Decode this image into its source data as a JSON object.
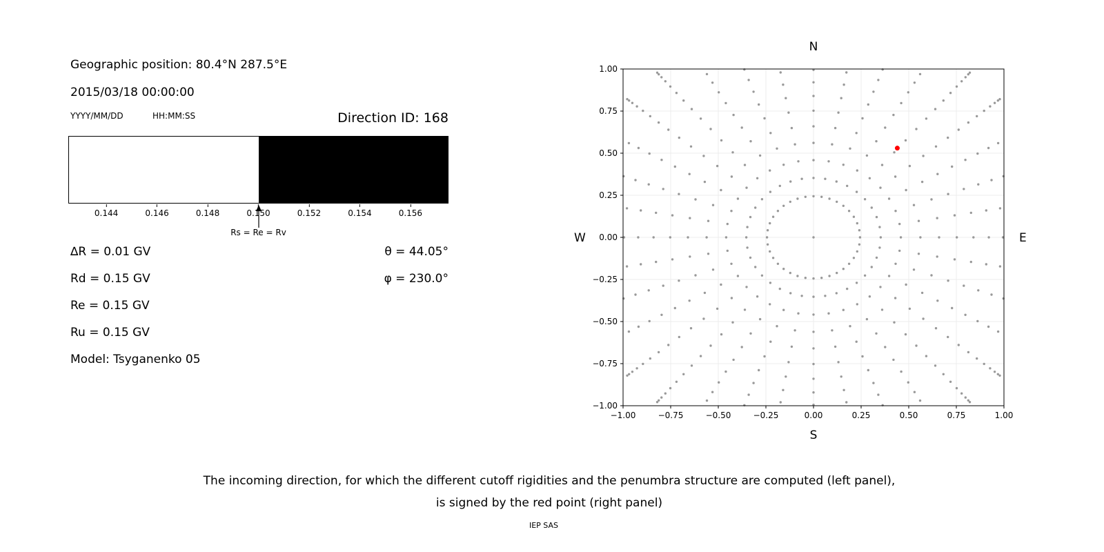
{
  "figure": {
    "background": "#ffffff"
  },
  "left_panel": {
    "geo_position": "Geographic position: 80.4°N 287.5°E",
    "datetime": "2015/03/18 00:00:00",
    "date_format_hint": "YYYY/MM/DD",
    "time_format_hint": "HH:MM:SS",
    "params_left": [
      "∆R = 0.01 GV",
      "Rd = 0.15 GV",
      "Re = 0.15 GV",
      "Ru = 0.15 GV",
      "Model: Tsyganenko 05"
    ],
    "params_right": [
      "θ = 44.05°",
      "φ = 230.0°"
    ]
  },
  "caption": {
    "line1": "The incoming direction, for which the different cutoff rigidities and the penumbra structure are computed (left panel),",
    "line2": "is signed by the red point (right panel)",
    "credit": "IEP SAS"
  },
  "chart_data": [
    {
      "type": "bar",
      "name": "penumbra-structure",
      "title": "Direction ID: 168",
      "xlim": [
        0.1425,
        0.1575
      ],
      "xticks": [
        0.144,
        0.146,
        0.148,
        0.15,
        0.152,
        0.154,
        0.156
      ],
      "xtick_labels": [
        "0.144",
        "0.146",
        "0.148",
        "0.150",
        "0.152",
        "0.154",
        "0.156"
      ],
      "segments": [
        {
          "from": 0.1425,
          "to": 0.15,
          "color": "#ffffff",
          "meaning": "allowed"
        },
        {
          "from": 0.15,
          "to": 0.1575,
          "color": "#000000",
          "meaning": "forbidden"
        }
      ],
      "marker": {
        "x": 0.15,
        "label": "Rs = Re = Rv"
      },
      "annotations": {
        "delta_r_gv": 0.01,
        "rd_gv": 0.15,
        "re_gv": 0.15,
        "ru_gv": 0.15,
        "theta_deg": 44.05,
        "phi_deg": 230.0,
        "model": "Tsyganenko 05",
        "direction_id": 168
      }
    },
    {
      "type": "scatter",
      "name": "incoming-directions",
      "compass": {
        "top": "N",
        "bottom": "S",
        "left": "W",
        "right": "E"
      },
      "xlim": [
        -1.0,
        1.0
      ],
      "ylim": [
        -1.0,
        1.0
      ],
      "xticks": [
        -1.0,
        -0.75,
        -0.5,
        -0.25,
        0.0,
        0.25,
        0.5,
        0.75,
        1.0
      ],
      "yticks": [
        1.0,
        0.75,
        0.5,
        0.25,
        0.0,
        -0.25,
        -0.5,
        -0.75,
        -1.0
      ],
      "xtick_labels": [
        "−1.00",
        "−0.75",
        "−0.50",
        "−0.25",
        "0.00",
        "0.25",
        "0.50",
        "0.75",
        "1.00"
      ],
      "ytick_labels": [
        "1.00",
        "0.75",
        "0.50",
        "0.25",
        "0.00",
        "−0.25",
        "−0.50",
        "−0.75",
        "−1.00"
      ],
      "grid": true,
      "grid_color": "#ececec",
      "dot_color": "#999999",
      "direction_grid": {
        "azimuth_count": 36,
        "zenith_start_deg": 11,
        "zenith_step_deg": 5,
        "zenith_end_deg": 86,
        "radius_scale": 1.28,
        "center_point": true
      },
      "red_point": {
        "x": 0.44,
        "y": 0.53,
        "color": "#ff0000"
      }
    }
  ]
}
